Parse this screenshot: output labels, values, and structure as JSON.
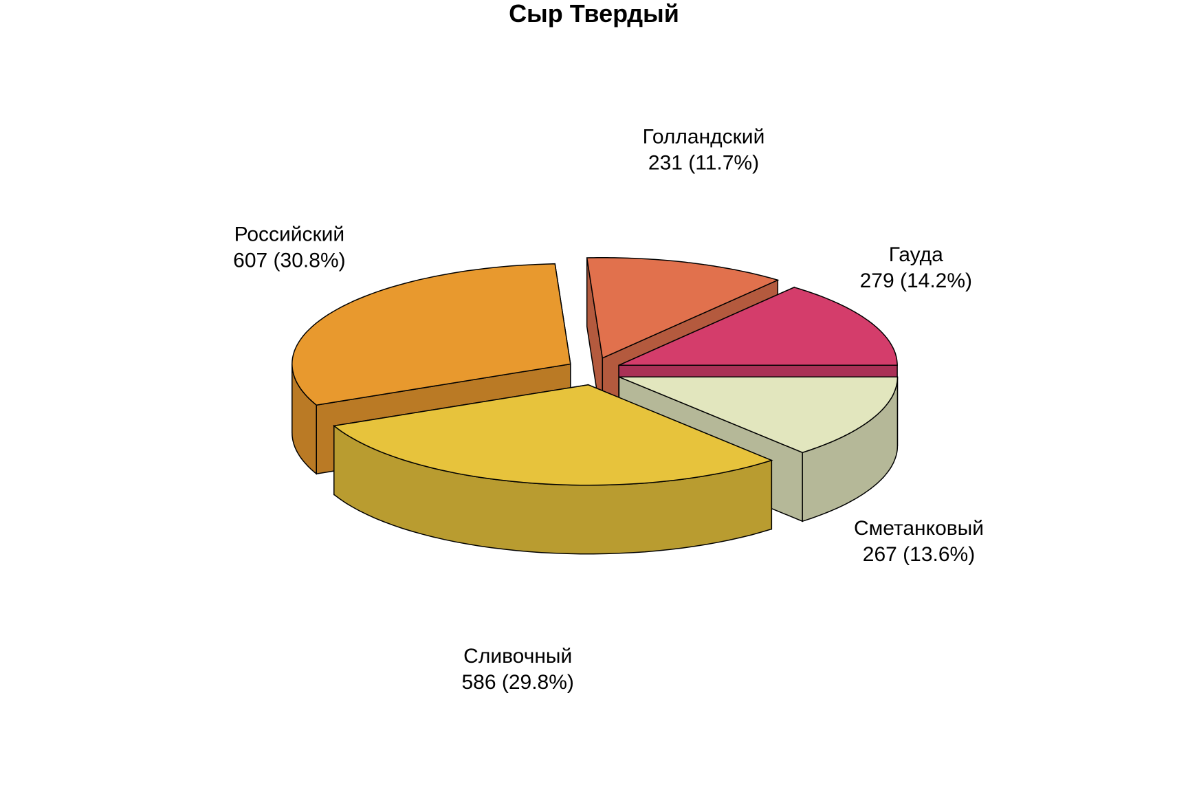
{
  "chart_data": {
    "type": "pie",
    "title": "Сыр Твердый",
    "slices": [
      {
        "label": "Гауда",
        "value": 279,
        "value_label": "279 (14.2%)",
        "color": "#D43D6B"
      },
      {
        "label": "Голландский",
        "value": 231,
        "value_label": "231 (11.7%)",
        "color": "#E1714D"
      },
      {
        "label": "Российский",
        "value": 607,
        "value_label": "607 (30.8%)",
        "color": "#E8992E"
      },
      {
        "label": "Сливочный",
        "value": 586,
        "value_label": "586 (29.8%)",
        "color": "#E7C33C"
      },
      {
        "label": "Сметанковый",
        "value": 267,
        "value_label": "267 (13.6%)",
        "color": "#E2E6BE"
      }
    ],
    "style": "3d-exploded",
    "legend": "none"
  }
}
